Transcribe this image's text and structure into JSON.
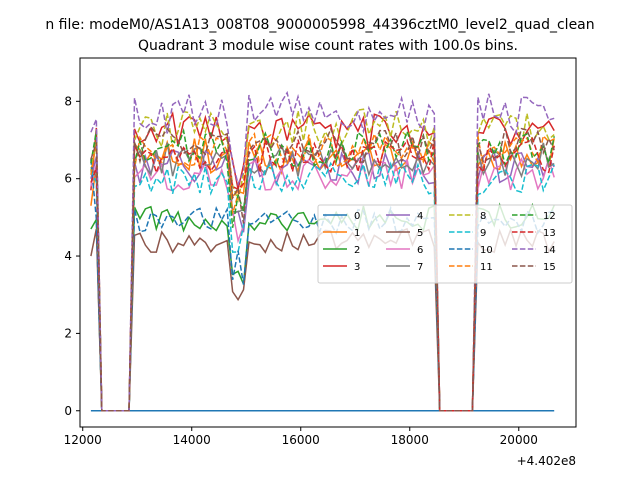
{
  "chart_data": {
    "type": "line",
    "suptitle": "n file: modeM0/AS1A13_008T08_9000005998_44396cztM0_level2_quad_clean",
    "title": "Quadrant 3 module wise count rates with 100.0s bins.",
    "xlabel": "",
    "ylabel": "",
    "x_offset_label": "+4.402e8",
    "xlim": [
      11950,
      21050
    ],
    "ylim": [
      -0.42,
      9.12
    ],
    "xticks": [
      12000,
      14000,
      16000,
      18000,
      20000
    ],
    "xtick_labels": [
      "12000",
      "14000",
      "16000",
      "18000",
      "20000"
    ],
    "yticks": [
      0,
      2,
      4,
      6,
      8
    ],
    "ytick_labels": [
      "0",
      "2",
      "4",
      "6",
      "8"
    ],
    "grid": false,
    "legend_position": "center-right",
    "x_start": 12150,
    "x_step": 100,
    "n_points": 86,
    "gaps": [
      [
        12350,
        12850
      ],
      [
        18500,
        19150
      ]
    ],
    "series": [
      {
        "name": "0",
        "color": "#1f77b4",
        "style": "solid",
        "zero": true
      },
      {
        "name": "1",
        "color": "#ff7f0e",
        "style": "solid",
        "level": 6.6,
        "start": 5.3
      },
      {
        "name": "2",
        "color": "#2ca02c",
        "style": "solid",
        "level": 5.0,
        "start": 4.7
      },
      {
        "name": "3",
        "color": "#d62728",
        "style": "solid",
        "level": 7.2,
        "start": 5.7
      },
      {
        "name": "4",
        "color": "#9467bd",
        "style": "solid",
        "level": 6.3,
        "start": 6.0
      },
      {
        "name": "5",
        "color": "#8c564b",
        "style": "solid",
        "level": 4.4,
        "start": 4.0
      },
      {
        "name": "6",
        "color": "#e377c2",
        "style": "solid",
        "level": 6.1,
        "start": 5.8
      },
      {
        "name": "7",
        "color": "#7f7f7f",
        "style": "solid",
        "level": 6.5,
        "start": 6.3
      },
      {
        "name": "8",
        "color": "#bcbd22",
        "style": "dashed",
        "level": 7.3,
        "start": 6.2
      },
      {
        "name": "9",
        "color": "#17becf",
        "style": "dashed",
        "level": 6.0,
        "start": 6.2
      },
      {
        "name": "10",
        "color": "#1f77b4",
        "style": "dashed",
        "level": 4.9,
        "start": 6.5
      },
      {
        "name": "11",
        "color": "#ff7f0e",
        "style": "dashed",
        "level": 6.7,
        "start": 6.1
      },
      {
        "name": "12",
        "color": "#2ca02c",
        "style": "dashed",
        "level": 6.8,
        "start": 6.4
      },
      {
        "name": "13",
        "color": "#d62728",
        "style": "dashed",
        "level": 6.6,
        "start": 5.9
      },
      {
        "name": "14",
        "color": "#9467bd",
        "style": "dashed",
        "level": 7.7,
        "start": 7.2
      },
      {
        "name": "15",
        "color": "#8c564b",
        "style": "dashed",
        "level": 6.9,
        "start": 6.5
      }
    ]
  }
}
